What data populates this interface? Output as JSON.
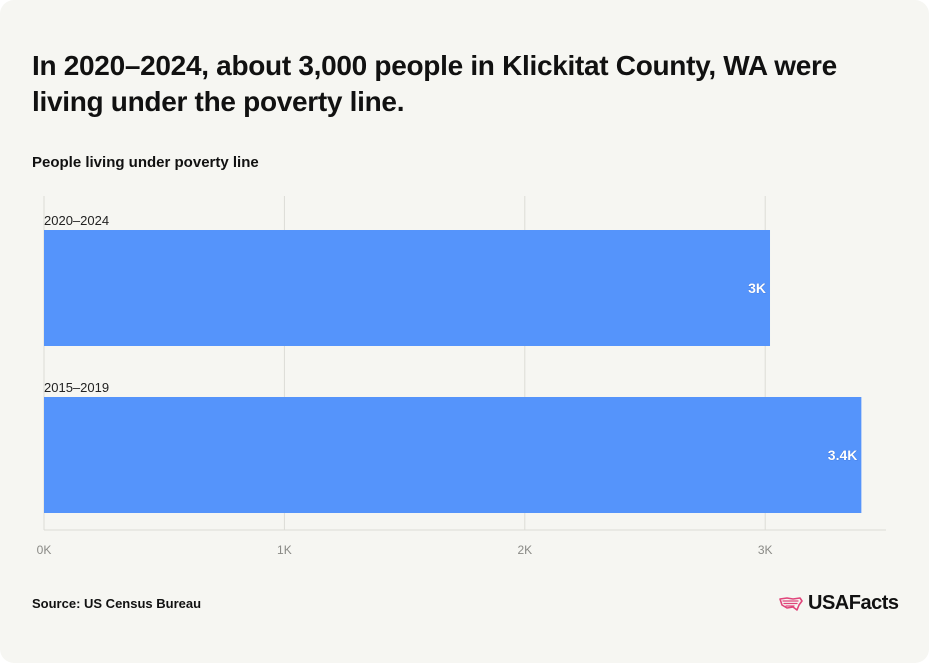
{
  "title": "In 2020–2024, about 3,000 people in Klickitat County, WA were living under the poverty line.",
  "subtitle": "People living under poverty line",
  "source": "Source: US Census Bureau",
  "brand": {
    "name": "USAFacts",
    "icon": "us-flag-map-icon"
  },
  "colors": {
    "bar": "#5594fb",
    "background": "#f6f6f2",
    "grid": "#dcdcd6",
    "logo": "#e0457b"
  },
  "chart_data": {
    "type": "bar",
    "orientation": "horizontal",
    "categories": [
      "2020–2024",
      "2015–2019"
    ],
    "values": [
      3020,
      3400
    ],
    "data_labels": [
      "3K",
      "3.4K"
    ],
    "xlim": [
      0,
      3500
    ],
    "xticks": [
      0,
      1000,
      2000,
      3000
    ],
    "xtick_labels": [
      "0K",
      "1K",
      "2K",
      "3K"
    ],
    "grid": true
  }
}
